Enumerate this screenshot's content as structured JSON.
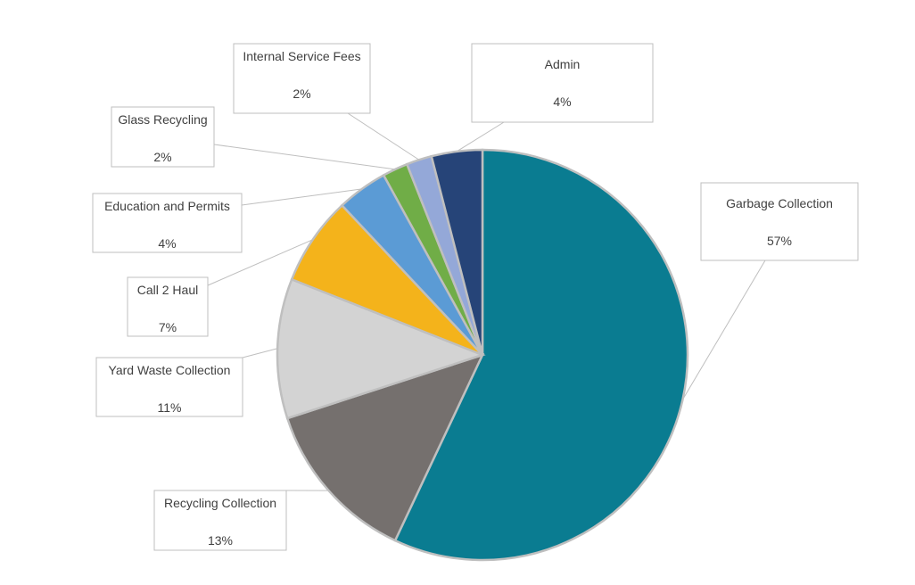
{
  "chart_data": {
    "type": "pie",
    "title": "",
    "slices": [
      {
        "name": "Garbage Collection",
        "value": 57,
        "label": "57%",
        "color": "#0a7c91"
      },
      {
        "name": "Recycling Collection",
        "value": 13,
        "label": "13%",
        "color": "#75706e"
      },
      {
        "name": "Yard Waste Collection",
        "value": 11,
        "label": "11%",
        "color": "#d3d3d3"
      },
      {
        "name": "Call 2 Haul",
        "value": 7,
        "label": "7%",
        "color": "#f4b31b"
      },
      {
        "name": "Education and Permits",
        "value": 4,
        "label": "4%",
        "color": "#5b9bd5"
      },
      {
        "name": "Glass Recycling",
        "value": 2,
        "label": "2%",
        "color": "#70ad47"
      },
      {
        "name": "Internal Service Fees",
        "value": 2,
        "label": "2%",
        "color": "#94a8d8"
      },
      {
        "name": "Admin",
        "value": 4,
        "label": "4%",
        "color": "#264478"
      }
    ],
    "legend": "none",
    "data_labels": "callout boxes with category name and percentage"
  }
}
